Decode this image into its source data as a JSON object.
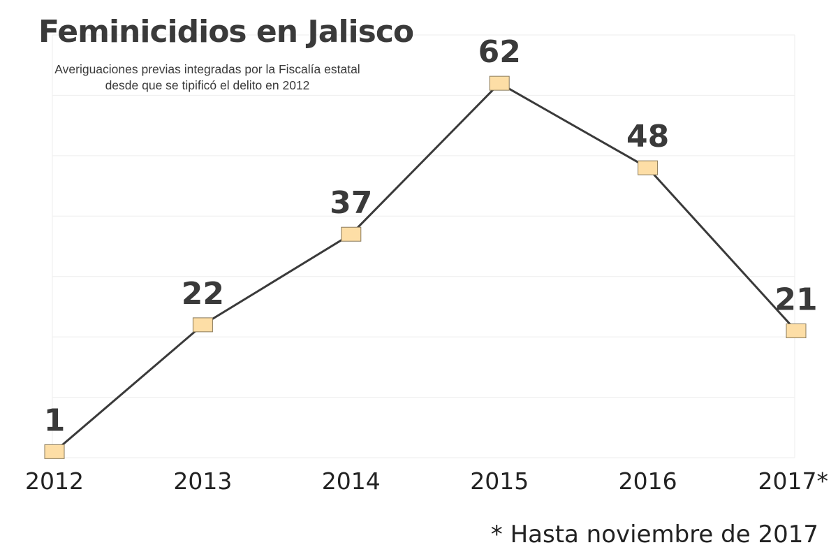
{
  "chart_data": {
    "type": "line",
    "title": "Feminicidios en Jalisco",
    "subtitle_lines": [
      "Averiguaciones previas integradas por la Fiscalía estatal",
      "desde que se tipificó el delito en 2012"
    ],
    "categories": [
      "2012",
      "2013",
      "2014",
      "2015",
      "2016",
      "2017*"
    ],
    "values": [
      1,
      22,
      37,
      62,
      48,
      21
    ],
    "data_labels": [
      "1",
      "22",
      "37",
      "62",
      "48",
      "21"
    ],
    "ylim": [
      0,
      70
    ],
    "y_grid_step": 10,
    "grid": true,
    "y_tick_labels_visible": false,
    "footnote": "* Hasta noviembre de 2017",
    "colors": {
      "line": "#3a3a3a",
      "marker_fill": "#fddea6",
      "marker_stroke": "#8a7a5a",
      "grid": "#eeeeee",
      "text": "#3a3a3a"
    }
  }
}
